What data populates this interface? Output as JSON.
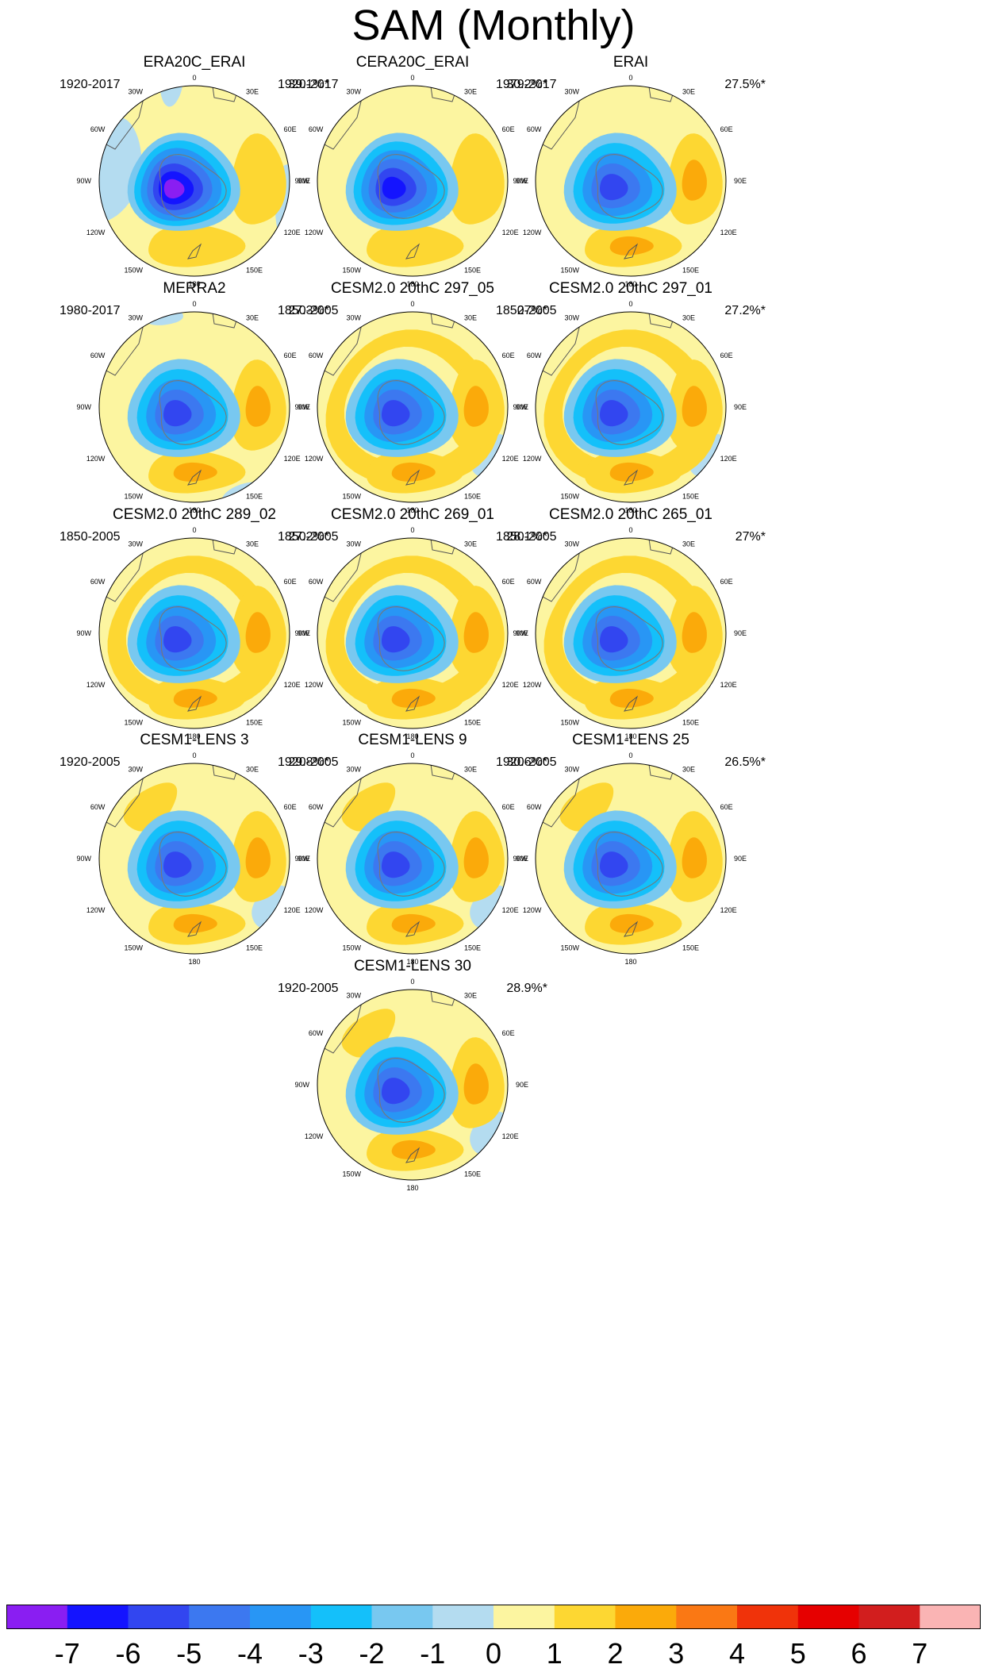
{
  "title": "SAM (Monthly)",
  "chart_data": {
    "type": "heatmap",
    "projection": "south-polar-stereographic",
    "variable": "SAM regression pattern",
    "longitude_labels": [
      "0",
      "30E",
      "60E",
      "90E",
      "120E",
      "150E",
      "180",
      "150W",
      "120W",
      "90W",
      "60W",
      "30W"
    ],
    "panels": [
      {
        "name": "ERA20C_ERAI",
        "period": "1920-2017",
        "variance_explained": "39.1%*",
        "min_level": -7,
        "lobes": [
          {
            "lon": 90,
            "value": 1.5
          },
          {
            "lon": 180,
            "value": 1.5
          }
        ]
      },
      {
        "name": "CERA20C_ERAI",
        "period": "1920-2017",
        "variance_explained": "30.2%*",
        "min_level": -6,
        "lobes": [
          {
            "lon": 90,
            "value": 1.5
          },
          {
            "lon": 180,
            "value": 1.5
          }
        ]
      },
      {
        "name": "ERAI",
        "period": "1979-2017",
        "variance_explained": "27.5%*",
        "min_level": -5,
        "lobes": [
          {
            "lon": 90,
            "value": 2.5
          },
          {
            "lon": 180,
            "value": 2.5
          }
        ]
      },
      {
        "name": "MERRA2",
        "period": "1980-2017",
        "variance_explained": "27.3%*",
        "min_level": -5,
        "lobes": [
          {
            "lon": 90,
            "value": 2.5
          },
          {
            "lon": 180,
            "value": 2.5
          }
        ]
      },
      {
        "name": "CESM2.0 20thC 297_05",
        "period": "1850-2005",
        "variance_explained": "27%*",
        "min_level": -5,
        "lobes": [
          {
            "lon": 90,
            "value": 2.5
          },
          {
            "lon": 180,
            "value": 2.5
          }
        ]
      },
      {
        "name": "CESM2.0 20thC 297_01",
        "period": "1850-2005",
        "variance_explained": "27.2%*",
        "min_level": -5,
        "lobes": [
          {
            "lon": 90,
            "value": 2.5
          },
          {
            "lon": 180,
            "value": 2.5
          }
        ]
      },
      {
        "name": "CESM2.0 20thC 289_02",
        "period": "1850-2005",
        "variance_explained": "27.2%*",
        "min_level": -5,
        "lobes": [
          {
            "lon": 90,
            "value": 2.5
          },
          {
            "lon": 180,
            "value": 2.5
          }
        ]
      },
      {
        "name": "CESM2.0 20thC 269_01",
        "period": "1850-2005",
        "variance_explained": "28.1%*",
        "min_level": -5,
        "lobes": [
          {
            "lon": 90,
            "value": 2.5
          },
          {
            "lon": 180,
            "value": 2.5
          }
        ]
      },
      {
        "name": "CESM2.0 20thC 265_01",
        "period": "1850-2005",
        "variance_explained": "27%*",
        "min_level": -5,
        "lobes": [
          {
            "lon": 90,
            "value": 2.5
          },
          {
            "lon": 180,
            "value": 2.5
          }
        ]
      },
      {
        "name": "CESM1-LENS 3",
        "period": "1920-2005",
        "variance_explained": "29.8%*",
        "min_level": -5,
        "lobes": [
          {
            "lon": 90,
            "value": 2.5
          },
          {
            "lon": 180,
            "value": 2.5
          }
        ]
      },
      {
        "name": "CESM1-LENS 9",
        "period": "1920-2005",
        "variance_explained": "30.6%*",
        "min_level": -5,
        "lobes": [
          {
            "lon": 90,
            "value": 2.5
          },
          {
            "lon": 180,
            "value": 2.5
          }
        ]
      },
      {
        "name": "CESM1-LENS 25",
        "period": "1920-2005",
        "variance_explained": "26.5%*",
        "min_level": -5,
        "lobes": [
          {
            "lon": 90,
            "value": 2.5
          },
          {
            "lon": 180,
            "value": 2.5
          }
        ]
      },
      {
        "name": "CESM1-LENS 30",
        "period": "1920-2005",
        "variance_explained": "28.9%*",
        "min_level": -5,
        "lobes": [
          {
            "lon": 90,
            "value": 2.5
          },
          {
            "lon": 180,
            "value": 2.5
          }
        ]
      }
    ],
    "colorbar": {
      "levels": [
        -7,
        -6,
        -5,
        -4,
        -3,
        -2,
        -1,
        0,
        1,
        2,
        3,
        4,
        5,
        6,
        7
      ],
      "tick_labels": [
        "-7",
        "-6",
        "-5",
        "-4",
        "-3",
        "-2",
        "-1",
        "0",
        "1",
        "2",
        "3",
        "4",
        "5",
        "6",
        "7"
      ],
      "colors": [
        "#8a1ef2",
        "#1414ff",
        "#3246f0",
        "#3c78f0",
        "#2896f5",
        "#14c0fa",
        "#78c8f0",
        "#b4dcf0",
        "#fcf5a0",
        "#fdd732",
        "#fbaa0a",
        "#fa7814",
        "#f0330a",
        "#e60000",
        "#d21e1e",
        "#fab4b4"
      ]
    }
  }
}
